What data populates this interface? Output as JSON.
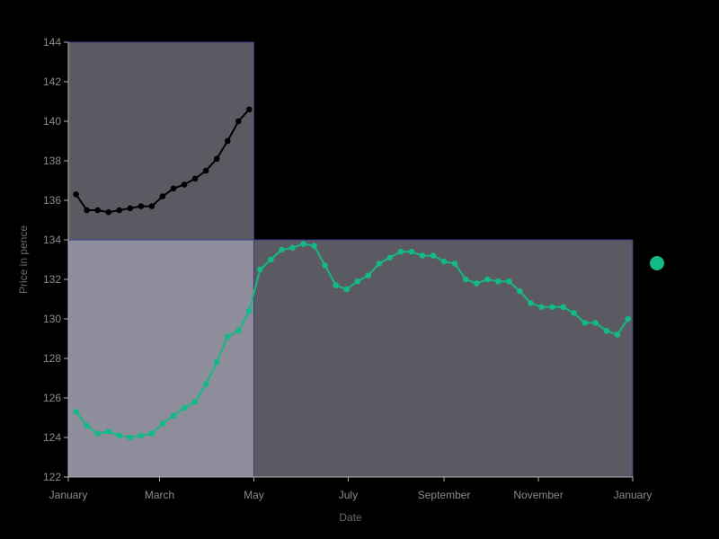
{
  "chart_data": {
    "type": "line",
    "xlabel": "Date",
    "ylabel": "Price in pence",
    "ylim": [
      122,
      144
    ],
    "y_ticks": [
      122,
      124,
      126,
      128,
      130,
      132,
      134,
      136,
      138,
      140,
      142,
      144
    ],
    "x_ticks": [
      {
        "label": "January",
        "date": "2023-01-01"
      },
      {
        "label": "March",
        "date": "2023-03-01"
      },
      {
        "label": "May",
        "date": "2023-05-01"
      },
      {
        "label": "July",
        "date": "2023-07-01"
      },
      {
        "label": "September",
        "date": "2023-09-01"
      },
      {
        "label": "November",
        "date": "2023-11-01"
      },
      {
        "label": "January",
        "date": "2024-01-01"
      }
    ],
    "xlim": [
      "2023-01-01",
      "2024-01-01"
    ],
    "grid": false,
    "legend": "right",
    "colors": {
      "region_a": "#5b5a62",
      "region_b": "#8e8d9c",
      "region_c": "#5b5a62",
      "region_border": "#3a3a8a",
      "axis": "#b0b0b0"
    },
    "regions": [
      {
        "x": [
          "2023-01-01",
          "2023-05-01"
        ],
        "y": [
          134,
          144
        ],
        "fill": "region_a"
      },
      {
        "x": [
          "2023-01-01",
          "2023-05-01"
        ],
        "y": [
          122,
          134
        ],
        "fill": "region_b"
      },
      {
        "x": [
          "2023-05-01",
          "2024-01-01"
        ],
        "y": [
          122,
          134
        ],
        "fill": "region_c"
      }
    ],
    "series": [
      {
        "color": "#000000",
        "x": [
          "2023-01-06",
          "2023-01-13",
          "2023-01-20",
          "2023-01-27",
          "2023-02-03",
          "2023-02-10",
          "2023-02-17",
          "2023-02-24",
          "2023-03-03",
          "2023-03-10",
          "2023-03-17",
          "2023-03-24",
          "2023-03-31",
          "2023-04-07",
          "2023-04-14",
          "2023-04-21",
          "2023-04-28"
        ],
        "y": [
          136.3,
          135.5,
          135.5,
          135.4,
          135.5,
          135.6,
          135.7,
          135.7,
          136.2,
          136.6,
          136.8,
          137.1,
          137.5,
          138.1,
          139.0,
          140.0,
          140.6
        ]
      },
      {
        "color": "#13b987",
        "x": [
          "2023-01-06",
          "2023-01-13",
          "2023-01-20",
          "2023-01-27",
          "2023-02-03",
          "2023-02-10",
          "2023-02-17",
          "2023-02-24",
          "2023-03-03",
          "2023-03-10",
          "2023-03-17",
          "2023-03-24",
          "2023-03-31",
          "2023-04-07",
          "2023-04-14",
          "2023-04-21",
          "2023-04-28",
          "2023-05-05",
          "2023-05-12",
          "2023-05-19",
          "2023-05-26",
          "2023-06-02",
          "2023-06-09",
          "2023-06-16",
          "2023-06-23",
          "2023-06-30",
          "2023-07-07",
          "2023-07-14",
          "2023-07-21",
          "2023-07-28",
          "2023-08-04",
          "2023-08-11",
          "2023-08-18",
          "2023-08-25",
          "2023-09-01",
          "2023-09-08",
          "2023-09-15",
          "2023-09-22",
          "2023-09-29",
          "2023-10-06",
          "2023-10-13",
          "2023-10-20",
          "2023-10-27",
          "2023-11-03",
          "2023-11-10",
          "2023-11-17",
          "2023-11-24",
          "2023-12-01",
          "2023-12-08",
          "2023-12-15",
          "2023-12-22",
          "2023-12-29"
        ],
        "y": [
          125.3,
          124.6,
          124.2,
          124.3,
          124.1,
          124.0,
          124.1,
          124.2,
          124.7,
          125.1,
          125.5,
          125.8,
          126.7,
          127.8,
          129.1,
          129.4,
          130.4,
          132.5,
          133.0,
          133.5,
          133.6,
          133.8,
          133.7,
          132.7,
          131.7,
          131.5,
          131.9,
          132.2,
          132.8,
          133.1,
          133.4,
          133.4,
          133.2,
          133.2,
          132.9,
          132.8,
          132.0,
          131.8,
          132.0,
          131.9,
          131.9,
          131.4,
          130.8,
          130.6,
          130.6,
          130.6,
          130.3,
          129.8,
          129.8,
          129.4,
          129.2,
          130.0
        ]
      }
    ]
  }
}
